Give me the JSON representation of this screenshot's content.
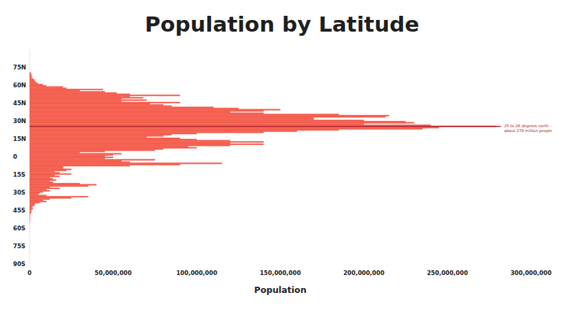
{
  "chart_data": {
    "type": "histogram",
    "orientation": "horizontal",
    "title": "Population by Latitude",
    "xlabel": "Population",
    "color": "#f45b4b",
    "grid": false,
    "bins": [
      -56,
      -55,
      -54,
      -53,
      -52,
      -51,
      -50,
      -49,
      -48,
      -47,
      -46,
      -45,
      -44,
      -43,
      -42,
      -41,
      -40,
      -39,
      -38,
      -37,
      -36,
      -35,
      -34,
      -33,
      -32,
      -31,
      -30,
      -29,
      -28,
      -27,
      -26,
      -25,
      -24,
      -23,
      -22,
      -21,
      -20,
      -19,
      -18,
      -17,
      -16,
      -15,
      -14,
      -13,
      -12,
      -11,
      -10,
      -9,
      -8,
      -7,
      -6,
      -5,
      -4,
      -3,
      -2,
      -1,
      0,
      1,
      2,
      3,
      4,
      5,
      6,
      7,
      8,
      9,
      10,
      11,
      12,
      13,
      14,
      15,
      16,
      17,
      18,
      19,
      20,
      21,
      22,
      23,
      24,
      25,
      26,
      27,
      28,
      29,
      30,
      31,
      32,
      33,
      34,
      35,
      36,
      37,
      38,
      39,
      40,
      41,
      42,
      43,
      44,
      45,
      46,
      47,
      48,
      49,
      50,
      51,
      52,
      53,
      54,
      55,
      56,
      57,
      58,
      59,
      60,
      61,
      62,
      63,
      64,
      65,
      66,
      67,
      68,
      69,
      70,
      71
    ],
    "values": [
      20000,
      50000,
      100000,
      200000,
      200000,
      200000,
      200000,
      300000,
      500000,
      1000000,
      1000000,
      1000000,
      2000000,
      1500000,
      2000000,
      3000000,
      3000000,
      6000000,
      10000000,
      8000000,
      12000000,
      25000000,
      35000000,
      10000000,
      5000000,
      6000000,
      8000000,
      12000000,
      10000000,
      18000000,
      12000000,
      35000000,
      40000000,
      30000000,
      14000000,
      12000000,
      16000000,
      14000000,
      12000000,
      18000000,
      15000000,
      25000000,
      18000000,
      15000000,
      22000000,
      25000000,
      20000000,
      20000000,
      60000000,
      90000000,
      115000000,
      60000000,
      55000000,
      75000000,
      45000000,
      50000000,
      45000000,
      50000000,
      55000000,
      30000000,
      45000000,
      75000000,
      80000000,
      100000000,
      95000000,
      120000000,
      140000000,
      120000000,
      140000000,
      120000000,
      100000000,
      90000000,
      70000000,
      80000000,
      85000000,
      100000000,
      140000000,
      160000000,
      185000000,
      235000000,
      245000000,
      279000000,
      240000000,
      200000000,
      230000000,
      225000000,
      200000000,
      170000000,
      170000000,
      213000000,
      215000000,
      185000000,
      140000000,
      120000000,
      140000000,
      150000000,
      125000000,
      110000000,
      85000000,
      80000000,
      72000000,
      90000000,
      55000000,
      70000000,
      55000000,
      68000000,
      60000000,
      90000000,
      60000000,
      52000000,
      45000000,
      30000000,
      44000000,
      22000000,
      20000000,
      10000000,
      8000000,
      5000000,
      4000000,
      3000000,
      3000000,
      2000000,
      1000000,
      1500000,
      1000000,
      1000000,
      500000
    ],
    "xlim": [
      0,
      300000000
    ],
    "xticks": [
      0,
      {
        "value": 50000000,
        "label": "50,000,000"
      },
      {
        "value": 100000000,
        "label": "100,000,000"
      },
      {
        "value": 150000000,
        "label": "150,000,000"
      },
      {
        "value": 200000000,
        "label": "200,000,000"
      },
      {
        "value": 250000000,
        "label": "250,000,000"
      },
      {
        "value": 300000000,
        "label": "300,000,000"
      }
    ],
    "ylim": [
      -90,
      90
    ],
    "yticks": [
      {
        "value": 75,
        "label": "75N"
      },
      {
        "value": 60,
        "label": "60N"
      },
      {
        "value": 45,
        "label": "45N"
      },
      {
        "value": 30,
        "label": "30N"
      },
      {
        "value": 15,
        "label": "15N"
      },
      0,
      {
        "value": -15,
        "label": "15S"
      },
      {
        "value": -30,
        "label": "30S"
      },
      {
        "value": -45,
        "label": "45S"
      },
      {
        "value": -60,
        "label": "60S"
      },
      {
        "value": -75,
        "label": "75S"
      },
      {
        "value": -90,
        "label": "90S"
      }
    ],
    "annotations": [
      {
        "y": 25.5,
        "text": [
          "25 to 26 degrees north –",
          "about 279 million people"
        ]
      }
    ]
  }
}
